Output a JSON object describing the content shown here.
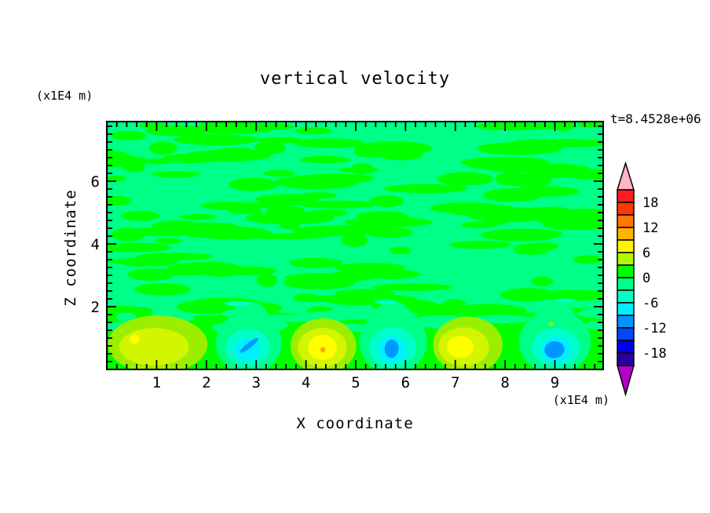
{
  "title": "vertical velocity",
  "timestamp": "t=8.4528e+06",
  "axes": {
    "x": {
      "label": "X coordinate",
      "unit": "(x1E4 m)",
      "ticks": [
        1,
        2,
        3,
        4,
        5,
        6,
        7,
        8,
        9
      ],
      "minor_step": 0.2,
      "range": [
        0,
        9.97
      ]
    },
    "z": {
      "label": "Z coordinate",
      "unit": "(x1E4 m)",
      "ticks": [
        2,
        4,
        6
      ],
      "minor_step": 0.25,
      "range": [
        0,
        7.9
      ]
    }
  },
  "colorbar": {
    "labels": [
      18,
      12,
      6,
      0,
      -6,
      -12,
      -18
    ],
    "levels": {
      "min": -21,
      "max": 21,
      "step": 3
    },
    "colors": [
      "#ff1e1e",
      "#ff3700",
      "#ff7800",
      "#ffb400",
      "#fff500",
      "#b4f500",
      "#00ff00",
      "#00ff87",
      "#00ffc8",
      "#00f0ff",
      "#0096ff",
      "#0046ff",
      "#0000e6",
      "#2800a0"
    ],
    "over_arrow_color": "#ffb4c8",
    "under_arrow_color": "#b400c8"
  },
  "chart_data": {
    "type": "heatmap",
    "title": "vertical velocity",
    "xlabel": "X coordinate",
    "ylabel": "Z coordinate",
    "time": "t=8.4528e+06",
    "x_range": [
      0,
      9.97
    ],
    "z_range": [
      0,
      7.9
    ],
    "background": {
      "w_range": [
        -3,
        3
      ],
      "base_color": "#00ff87",
      "streak_color": "#00ff00",
      "band_color": "#00ff00",
      "band_top_z": 1.62,
      "texture": {
        "seed": 20,
        "count": 155,
        "edge_count": 22,
        "z_min": 1.55,
        "z_max": 7.85
      }
    },
    "features": [
      {
        "name": "updraft-1",
        "approx_peak_w": 9,
        "layers": [
          {
            "c": "#9cee00",
            "x": 1.02,
            "z": 0.8,
            "rx": 1.0,
            "rz": 0.92
          },
          {
            "c": "#d2f500",
            "x": 0.95,
            "z": 0.72,
            "rx": 0.7,
            "rz": 0.6
          },
          {
            "c": "#ffff00",
            "x": 0.56,
            "z": 0.97,
            "rx": 0.1,
            "rz": 0.15
          }
        ]
      },
      {
        "name": "downdraft-1",
        "approx_peak_w": -10,
        "layers": [
          {
            "c": "#00ff87",
            "x": 2.85,
            "z": 0.85,
            "rx": 0.66,
            "rz": 1.0
          },
          {
            "c": "#00ff87",
            "x": 2.86,
            "z": 1.55,
            "rx": 0.4,
            "rz": 0.62
          },
          {
            "c": "#00ffc8",
            "x": 2.83,
            "z": 0.7,
            "rx": 0.45,
            "rz": 0.6
          },
          {
            "c": "#00f0ff",
            "x": 2.82,
            "z": 0.64,
            "rx": 0.26,
            "rz": 0.36
          },
          {
            "c": "#0096ff",
            "x": 2.86,
            "z": 0.77,
            "rx": 0.23,
            "rz": 0.08,
            "rot": -38
          },
          {
            "c": "#00ffc8",
            "x": 2.62,
            "z": 2.1,
            "rx": 0.25,
            "rz": 0.08
          }
        ]
      },
      {
        "name": "updraft-2",
        "approx_peak_w": 11,
        "layers": [
          {
            "c": "#9cee00",
            "x": 4.35,
            "z": 0.75,
            "rx": 0.66,
            "rz": 0.88
          },
          {
            "c": "#d2f500",
            "x": 4.33,
            "z": 0.7,
            "rx": 0.49,
            "rz": 0.63
          },
          {
            "c": "#ffff00",
            "x": 4.33,
            "z": 0.7,
            "rx": 0.29,
            "rz": 0.4
          },
          {
            "c": "#ffaa00",
            "x": 4.34,
            "z": 0.63,
            "rx": 0.05,
            "rz": 0.09
          }
        ]
      },
      {
        "name": "downdraft-2",
        "approx_peak_w": -10,
        "layers": [
          {
            "c": "#00ff87",
            "x": 5.75,
            "z": 0.88,
            "rx": 0.68,
            "rz": 1.02
          },
          {
            "c": "#00ff87",
            "x": 5.74,
            "z": 1.58,
            "rx": 0.38,
            "rz": 0.6
          },
          {
            "c": "#00ffc8",
            "x": 5.74,
            "z": 0.7,
            "rx": 0.47,
            "rz": 0.64
          },
          {
            "c": "#00f0ff",
            "x": 5.73,
            "z": 0.64,
            "rx": 0.29,
            "rz": 0.42
          },
          {
            "c": "#0096ff",
            "x": 5.72,
            "z": 0.66,
            "rx": 0.14,
            "rz": 0.29,
            "rot": 6
          },
          {
            "c": "#00ffc8",
            "x": 5.6,
            "z": 2.15,
            "rx": 0.22,
            "rz": 0.07
          }
        ]
      },
      {
        "name": "updraft-3",
        "approx_peak_w": 9,
        "layers": [
          {
            "c": "#9cee00",
            "x": 7.25,
            "z": 0.78,
            "rx": 0.7,
            "rz": 0.9
          },
          {
            "c": "#d2f500",
            "x": 7.17,
            "z": 0.72,
            "rx": 0.51,
            "rz": 0.62
          },
          {
            "c": "#ffff00",
            "x": 7.1,
            "z": 0.72,
            "rx": 0.27,
            "rz": 0.35
          }
        ]
      },
      {
        "name": "downdraft-3",
        "approx_peak_w": -11,
        "layers": [
          {
            "c": "#00ff87",
            "x": 9.0,
            "z": 0.88,
            "rx": 0.72,
            "rz": 1.02
          },
          {
            "c": "#00ff87",
            "x": 9.0,
            "z": 1.58,
            "rx": 0.42,
            "rz": 0.6
          },
          {
            "c": "#00ffc8",
            "x": 9.02,
            "z": 0.7,
            "rx": 0.49,
            "rz": 0.62
          },
          {
            "c": "#00f0ff",
            "x": 9.03,
            "z": 0.64,
            "rx": 0.31,
            "rz": 0.41
          },
          {
            "c": "#0096ff",
            "x": 8.99,
            "z": 0.63,
            "rx": 0.2,
            "rz": 0.27,
            "rot": -8
          },
          {
            "c": "#9cee00",
            "x": 8.92,
            "z": 1.45,
            "rx": 0.05,
            "rz": 0.06
          },
          {
            "c": "#00ffc8",
            "x": 9.2,
            "z": 2.2,
            "rx": 0.2,
            "rz": 0.06
          }
        ]
      }
    ]
  }
}
